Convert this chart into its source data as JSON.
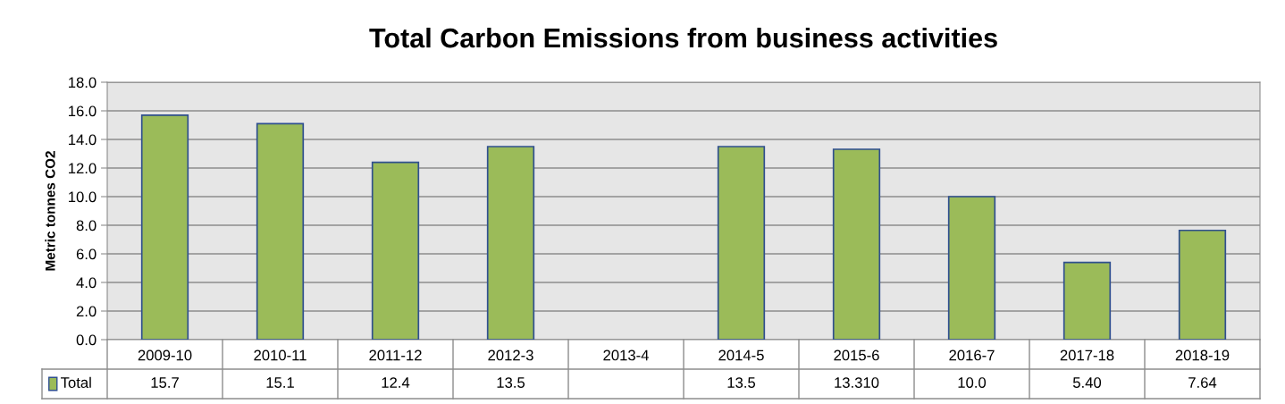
{
  "chart_data": {
    "type": "bar",
    "title": "Total Carbon Emissions from business activities",
    "ylabel": "Metric tonnes CO2",
    "categories": [
      "2009-10",
      "2010-11",
      "2011-12",
      "2012-3",
      "2013-4",
      "2014-5",
      "2015-6",
      "2016-7",
      "2017-18",
      "2018-19"
    ],
    "series": [
      {
        "name": "Total",
        "color": "#9bbb59",
        "values": [
          15.7,
          15.1,
          12.4,
          13.5,
          null,
          13.5,
          13.31,
          10.0,
          5.4,
          7.64
        ],
        "value_labels": [
          "15.7",
          "15.1",
          "12.4",
          "13.5",
          null,
          "13.5",
          "13.310",
          "10.0",
          "5.40",
          "7.64"
        ]
      }
    ],
    "ylim": [
      0,
      18
    ],
    "yticks": [
      {
        "value": 0,
        "label": "0.0"
      },
      {
        "value": 2,
        "label": "2.0"
      },
      {
        "value": 4,
        "label": "4.0"
      },
      {
        "value": 6,
        "label": "6.0"
      },
      {
        "value": 8,
        "label": "8.0"
      },
      {
        "value": 10,
        "label": "10.0"
      },
      {
        "value": 12,
        "label": "12.0"
      },
      {
        "value": 14,
        "label": "14.0"
      },
      {
        "value": 16,
        "label": "16.0"
      },
      {
        "value": 18,
        "label": "18.0"
      }
    ],
    "grid": "y",
    "legend": "bottom"
  }
}
